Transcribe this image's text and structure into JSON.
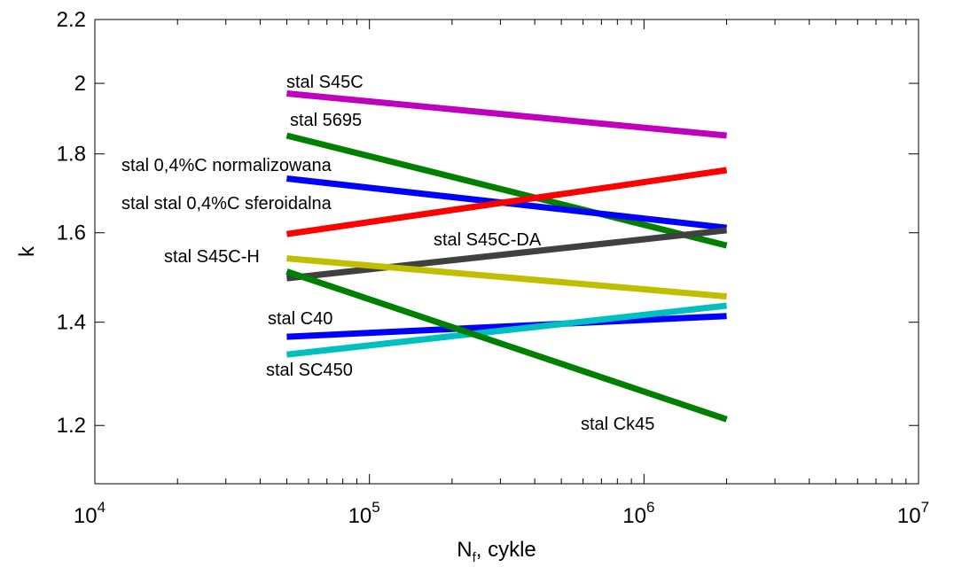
{
  "chart_data": {
    "type": "line",
    "xscale": "log",
    "yscale": "log",
    "xlabel": {
      "main": "N",
      "sub": "f",
      "rest": ", cykle"
    },
    "ylabel": "k",
    "xlim": [
      10000,
      10000000
    ],
    "ylim": [
      1.1,
      2.2
    ],
    "xticks": [
      {
        "value": 10000,
        "base": "10",
        "exp": "4"
      },
      {
        "value": 100000,
        "base": "10",
        "exp": "5"
      },
      {
        "value": 1000000,
        "base": "10",
        "exp": "6"
      },
      {
        "value": 10000000,
        "base": "10",
        "exp": "7"
      }
    ],
    "yticks": [
      {
        "value": 1.2,
        "label": "1.2"
      },
      {
        "value": 1.4,
        "label": "1.4"
      },
      {
        "value": 1.6,
        "label": "1.6"
      },
      {
        "value": 1.8,
        "label": "1.8"
      },
      {
        "value": 2.0,
        "label": "2"
      },
      {
        "value": 2.2,
        "label": "2.2"
      }
    ],
    "grid": false,
    "series": [
      {
        "name": "stal S45C",
        "color": "#bf00bf",
        "x": [
          50000,
          2000000
        ],
        "y": [
          1.97,
          1.85
        ]
      },
      {
        "name": "stal 5695",
        "color": "#008000",
        "x": [
          50000,
          2000000
        ],
        "y": [
          1.85,
          1.57
        ]
      },
      {
        "name": "stal 0,4%C normalizowana",
        "color": "#0000ff",
        "x": [
          50000,
          2000000
        ],
        "y": [
          1.735,
          1.612
        ]
      },
      {
        "name": "stal stal 0,4%C sferoidalna",
        "color": "#ff0000",
        "x": [
          50000,
          2000000
        ],
        "y": [
          1.597,
          1.757
        ]
      },
      {
        "name": "stal S45C-DA",
        "color": "#404040",
        "x": [
          50000,
          2000000
        ],
        "y": [
          1.495,
          1.606
        ]
      },
      {
        "name": "stal S45C-H",
        "color": "#bfbf00",
        "x": [
          50000,
          2000000
        ],
        "y": [
          1.54,
          1.455
        ]
      },
      {
        "name": "stal C40",
        "color": "#0000ff",
        "x": [
          50000,
          2000000
        ],
        "y": [
          1.37,
          1.413
        ]
      },
      {
        "name": "stal SC450",
        "color": "#00bfbf",
        "x": [
          50000,
          2000000
        ],
        "y": [
          1.334,
          1.435
        ]
      },
      {
        "name": "stal Ck45",
        "color": "#008000",
        "x": [
          50000,
          2000000
        ],
        "y": [
          1.51,
          1.211
        ]
      }
    ]
  }
}
